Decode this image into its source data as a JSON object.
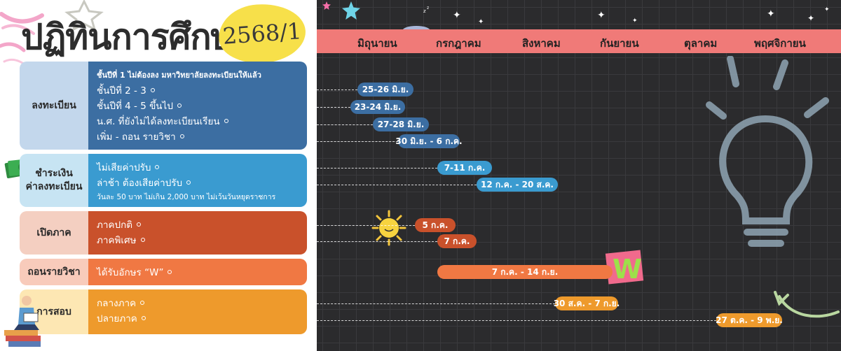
{
  "header": {
    "title": "ปฏิทินการศึกษา",
    "term": "2568/1"
  },
  "months": [
    "มิถุนายน",
    "กรกฎาคม",
    "สิงหาคม",
    "กันยายน",
    "ตุลาคม",
    "พฤศจิกายน"
  ],
  "categories": [
    {
      "label": "ลงทะเบียน",
      "note": "ชั้นปีที่ 1 ไม่ต้องลง มหาวิทยาลัยลงทะเบียนให้แล้ว",
      "items": [
        {
          "label": "ชั้นปีที่ 2 - 3",
          "date": "25-26 มิ.ย."
        },
        {
          "label": "ชั้นปีที่ 4 - 5 ขึ้นไป",
          "date": "23-24 มิ.ย."
        },
        {
          "label": "น.ศ. ที่ยังไม่ได้ลงทะเบียนเรียน",
          "date": "27-28 มิ.ย."
        },
        {
          "label": "เพิ่ม - ถอน รายวิชา",
          "date": "30 มิ.ย. - 6 ก.ค."
        }
      ]
    },
    {
      "label_line1": "ชำระเงิน",
      "label_line2": "ค่าลงทะเบียน",
      "items": [
        {
          "label": "ไม่เสียค่าปรับ",
          "date": "7-11 ก.ค."
        },
        {
          "label": "ล่าช้า ต้องเสียค่าปรับ",
          "date": "12 ก.ค. - 20 ส.ค."
        }
      ],
      "note": "วันละ 50 บาท ไม่เกิน 2,000 บาท ไม่เว้นวันหยุดราชการ"
    },
    {
      "label": "เปิดภาค",
      "items": [
        {
          "label": "ภาคปกติ",
          "date": "5 ก.ค."
        },
        {
          "label": "ภาคพิเศษ",
          "date": "7 ก.ค."
        }
      ]
    },
    {
      "label": "ถอนรายวิชา",
      "items": [
        {
          "label": "ได้รับอักษร “W”",
          "date": "7 ก.ค. - 14 ก.ย."
        }
      ]
    },
    {
      "label": "การสอบ",
      "items": [
        {
          "label": "กลางภาค",
          "date": "30 ส.ค. - 7 ก.ย."
        },
        {
          "label": "ปลายภาค",
          "date": "27 ต.ค. - 9 พ.ย."
        }
      ]
    }
  ],
  "stickers": {
    "w_letter": "W"
  },
  "colors": {
    "register": "#3c6ea2",
    "payment": "#3a9bd0",
    "opening": "#c9512b",
    "withdraw": "#f07843",
    "exam": "#ee9a2c",
    "month_bar": "#f07a78",
    "board": "#2b2b2d"
  },
  "icons": [
    "star-icon",
    "moon-icon",
    "sun-icon",
    "lightbulb-icon",
    "arrow-icon",
    "money-icon",
    "reader-icon"
  ]
}
